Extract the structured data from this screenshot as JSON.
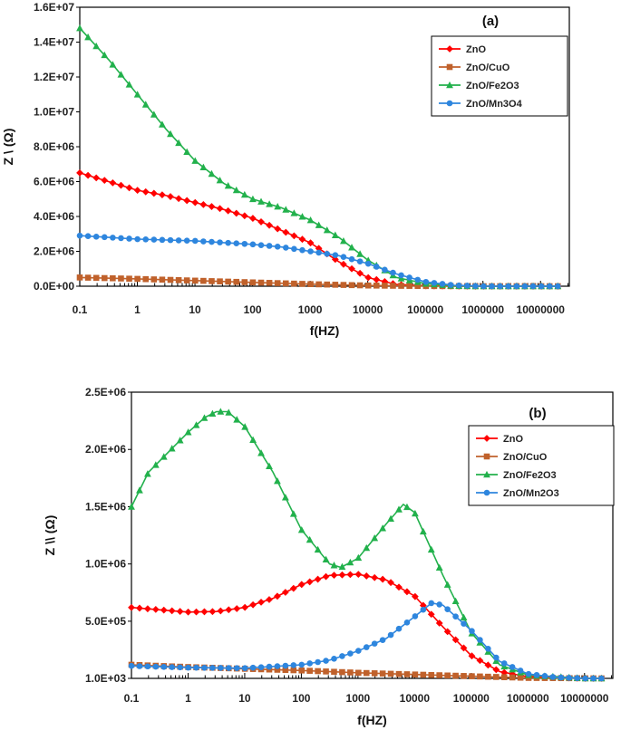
{
  "chart_data": [
    {
      "type": "line",
      "panel_label": "(a)",
      "xlabel": "f(HZ)",
      "ylabel": "Z \\ (Ω)",
      "xscale": "log",
      "xlim_log10": [
        -1,
        7.5
      ],
      "ylim": [
        0,
        16000000
      ],
      "x_tick_values_log10": [
        -1,
        0,
        1,
        2,
        3,
        4,
        5,
        6,
        7
      ],
      "x_tick_labels": [
        "0.1",
        "1",
        "10",
        "100",
        "1000",
        "10000",
        "100000",
        "1000000",
        "10000000"
      ],
      "y_tick_values": [
        0,
        2000000,
        4000000,
        6000000,
        8000000,
        10000000,
        12000000,
        14000000,
        16000000
      ],
      "y_tick_labels": [
        "0.0E+00",
        "2.0E+06",
        "4.0E+06",
        "6.0E+06",
        "8.0E+06",
        "1.0E+07",
        "1.2E+07",
        "1.4E+07",
        "1.6E+07"
      ],
      "legend_position": "top-right",
      "series": [
        {
          "name": "ZnO",
          "color": "#ff0000",
          "marker": "diamond",
          "points": [
            [
              -1,
              6500000
            ],
            [
              -0.5,
              6000000
            ],
            [
              0,
              5500000
            ],
            [
              0.5,
              5200000
            ],
            [
              1,
              4800000
            ],
            [
              1.5,
              4400000
            ],
            [
              2,
              3900000
            ],
            [
              2.5,
              3200000
            ],
            [
              3,
              2500000
            ],
            [
              3.5,
              1400000
            ],
            [
              4,
              500000
            ],
            [
              4.5,
              100000
            ],
            [
              5,
              20000
            ],
            [
              6,
              0
            ],
            [
              7.3,
              0
            ]
          ]
        },
        {
          "name": "ZnO/CuO",
          "color": "#c0612b",
          "marker": "square",
          "points": [
            [
              -1,
              500000
            ],
            [
              0,
              420000
            ],
            [
              1,
              320000
            ],
            [
              2,
              220000
            ],
            [
              3,
              120000
            ],
            [
              4,
              40000
            ],
            [
              5,
              10000
            ],
            [
              6,
              0
            ],
            [
              7.3,
              0
            ]
          ]
        },
        {
          "name": "ZnO/Fe2O3",
          "color": "#22b14c",
          "marker": "triangle",
          "points": [
            [
              -1,
              14800000
            ],
            [
              -0.5,
              13000000
            ],
            [
              0,
              11000000
            ],
            [
              0.5,
              9000000
            ],
            [
              1,
              7200000
            ],
            [
              1.5,
              5900000
            ],
            [
              2,
              5000000
            ],
            [
              2.5,
              4500000
            ],
            [
              3,
              3800000
            ],
            [
              3.5,
              2800000
            ],
            [
              4,
              1500000
            ],
            [
              4.5,
              500000
            ],
            [
              5,
              150000
            ],
            [
              5.5,
              20000
            ],
            [
              6,
              0
            ],
            [
              7.3,
              0
            ]
          ]
        },
        {
          "name": "ZnO/Mn3O4",
          "color": "#2e86de",
          "marker": "circle",
          "points": [
            [
              -1,
              2900000
            ],
            [
              -0.5,
              2800000
            ],
            [
              0,
              2700000
            ],
            [
              0.5,
              2650000
            ],
            [
              1,
              2600000
            ],
            [
              1.5,
              2500000
            ],
            [
              2,
              2400000
            ],
            [
              2.5,
              2250000
            ],
            [
              3,
              2000000
            ],
            [
              3.5,
              1750000
            ],
            [
              4,
              1300000
            ],
            [
              4.5,
              700000
            ],
            [
              5,
              250000
            ],
            [
              5.5,
              50000
            ],
            [
              6,
              0
            ],
            [
              7.3,
              0
            ]
          ]
        }
      ]
    },
    {
      "type": "line",
      "panel_label": "(b)",
      "xlabel": "f(HZ)",
      "ylabel": "Z \\\\ (Ω)",
      "xscale": "log",
      "xlim_log10": [
        -1,
        7.5
      ],
      "ylim": [
        1000,
        2500000
      ],
      "x_tick_values_log10": [
        -1,
        0,
        1,
        2,
        3,
        4,
        5,
        6,
        7
      ],
      "x_tick_labels": [
        "0.1",
        "1",
        "10",
        "100",
        "1000",
        "10000",
        "100000",
        "1000000",
        "10000000"
      ],
      "y_tick_values": [
        1000,
        500000,
        1000000,
        1500000,
        2000000,
        2500000
      ],
      "y_tick_labels": [
        "1.0E+03",
        "5.0E+05",
        "1.0E+06",
        "1.5E+06",
        "2.0E+06",
        "2.5E+06"
      ],
      "legend_position": "top-right",
      "series": [
        {
          "name": "ZnO",
          "color": "#ff0000",
          "marker": "diamond",
          "points": [
            [
              -1,
              620000
            ],
            [
              -0.5,
              600000
            ],
            [
              0,
              580000
            ],
            [
              0.5,
              585000
            ],
            [
              1,
              620000
            ],
            [
              1.5,
              700000
            ],
            [
              2,
              820000
            ],
            [
              2.5,
              900000
            ],
            [
              3,
              910000
            ],
            [
              3.5,
              860000
            ],
            [
              4,
              720000
            ],
            [
              4.5,
              450000
            ],
            [
              5,
              200000
            ],
            [
              5.5,
              60000
            ],
            [
              6,
              15000
            ],
            [
              7,
              1000
            ],
            [
              7.3,
              1000
            ]
          ]
        },
        {
          "name": "ZnO/CuO",
          "color": "#c0612b",
          "marker": "square",
          "points": [
            [
              -1,
              120000
            ],
            [
              0,
              100000
            ],
            [
              1,
              85000
            ],
            [
              2,
              70000
            ],
            [
              3,
              50000
            ],
            [
              4,
              35000
            ],
            [
              5,
              20000
            ],
            [
              6,
              5000
            ],
            [
              7.3,
              1000
            ]
          ]
        },
        {
          "name": "ZnO/Fe2O3",
          "color": "#22b14c",
          "marker": "triangle",
          "points": [
            [
              -1,
              1500000
            ],
            [
              -0.7,
              1800000
            ],
            [
              -0.3,
              2000000
            ],
            [
              0,
              2150000
            ],
            [
              0.3,
              2280000
            ],
            [
              0.5,
              2330000
            ],
            [
              0.7,
              2330000
            ],
            [
              1,
              2200000
            ],
            [
              1.5,
              1800000
            ],
            [
              2,
              1300000
            ],
            [
              2.5,
              1000000
            ],
            [
              2.7,
              970000
            ],
            [
              3,
              1050000
            ],
            [
              3.5,
              1350000
            ],
            [
              3.8,
              1520000
            ],
            [
              4,
              1450000
            ],
            [
              4.5,
              900000
            ],
            [
              5,
              400000
            ],
            [
              5.5,
              120000
            ],
            [
              6,
              30000
            ],
            [
              7,
              1000
            ],
            [
              7.3,
              1000
            ]
          ]
        },
        {
          "name": "ZnO/Mn2O3",
          "color": "#2e86de",
          "marker": "circle",
          "points": [
            [
              -1,
              110000
            ],
            [
              0,
              95000
            ],
            [
              1,
              90000
            ],
            [
              2,
              120000
            ],
            [
              2.5,
              160000
            ],
            [
              3,
              240000
            ],
            [
              3.5,
              350000
            ],
            [
              4,
              540000
            ],
            [
              4.3,
              660000
            ],
            [
              4.5,
              640000
            ],
            [
              5,
              420000
            ],
            [
              5.5,
              150000
            ],
            [
              6,
              40000
            ],
            [
              6.5,
              10000
            ],
            [
              7,
              1000
            ],
            [
              7.3,
              1000
            ]
          ]
        }
      ]
    }
  ]
}
